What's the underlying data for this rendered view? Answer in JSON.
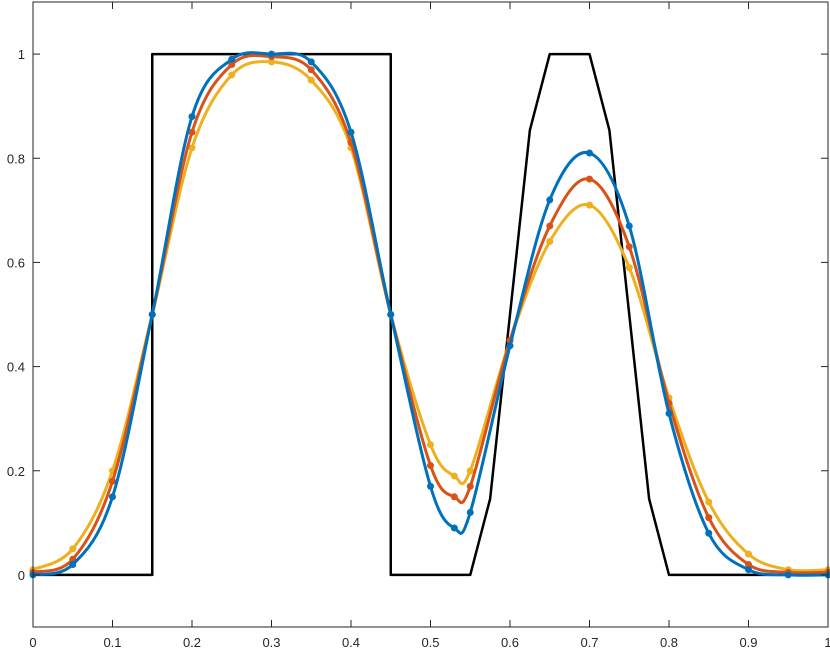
{
  "chart_data": {
    "type": "line",
    "title": "",
    "xlabel": "",
    "ylabel": "",
    "xlim": [
      0,
      1
    ],
    "ylim": [
      -0.1,
      1.1
    ],
    "xticks": [
      0,
      0.1,
      0.2,
      0.3,
      0.4,
      0.5,
      0.6,
      0.7,
      0.8,
      0.9,
      1
    ],
    "xtick_labels": [
      "0",
      "0.1",
      "0.2",
      "0.3",
      "0.4",
      "0.5",
      "0.6",
      "0.7",
      "0.8",
      "0.9",
      "1"
    ],
    "yticks": [
      0,
      0.2,
      0.4,
      0.6,
      0.8,
      1
    ],
    "ytick_labels": [
      "0",
      "0.2",
      "0.4",
      "0.6",
      "0.8",
      "1"
    ],
    "grid": false,
    "legend": "none",
    "series": [
      {
        "color": "#000000",
        "marker": "none",
        "x": [
          0,
          0.15,
          0.15,
          0.45,
          0.45,
          0.55,
          0.575,
          0.6,
          0.625,
          0.65,
          0.675,
          0.7,
          0.725,
          0.75,
          0.775,
          0.8,
          0.825,
          0.85,
          1
        ],
        "y": [
          0,
          0,
          1,
          1,
          0,
          0,
          0.146,
          0.5,
          0.854,
          1.0,
          1.0,
          1.0,
          0.854,
          0.5,
          0.146,
          0.0,
          0.0,
          0,
          0
        ]
      },
      {
        "color": "#EDB120",
        "marker": "dot",
        "x": [
          0,
          0.05,
          0.1,
          0.15,
          0.2,
          0.25,
          0.3,
          0.35,
          0.4,
          0.45,
          0.5,
          0.53,
          0.55,
          0.6,
          0.65,
          0.7,
          0.75,
          0.8,
          0.85,
          0.9,
          0.95,
          1
        ],
        "y": [
          0.01,
          0.05,
          0.2,
          0.5,
          0.82,
          0.96,
          0.985,
          0.95,
          0.82,
          0.5,
          0.25,
          0.19,
          0.2,
          0.45,
          0.64,
          0.71,
          0.59,
          0.34,
          0.14,
          0.04,
          0.01,
          0.01
        ]
      },
      {
        "color": "#D95319",
        "marker": "dot",
        "x": [
          0,
          0.05,
          0.1,
          0.15,
          0.2,
          0.25,
          0.3,
          0.35,
          0.4,
          0.45,
          0.5,
          0.53,
          0.55,
          0.6,
          0.65,
          0.7,
          0.75,
          0.8,
          0.85,
          0.9,
          0.95,
          1
        ],
        "y": [
          0.005,
          0.03,
          0.18,
          0.5,
          0.85,
          0.98,
          0.995,
          0.97,
          0.83,
          0.5,
          0.21,
          0.15,
          0.17,
          0.45,
          0.67,
          0.76,
          0.63,
          0.33,
          0.11,
          0.02,
          0.005,
          0.005
        ]
      },
      {
        "color": "#0072BD",
        "marker": "dot",
        "x": [
          0,
          0.05,
          0.1,
          0.15,
          0.2,
          0.25,
          0.3,
          0.35,
          0.4,
          0.45,
          0.5,
          0.53,
          0.55,
          0.6,
          0.65,
          0.7,
          0.75,
          0.8,
          0.85,
          0.9,
          0.95,
          1
        ],
        "y": [
          0.0,
          0.02,
          0.15,
          0.5,
          0.88,
          0.99,
          1.0,
          0.985,
          0.85,
          0.5,
          0.17,
          0.09,
          0.12,
          0.44,
          0.72,
          0.81,
          0.67,
          0.31,
          0.08,
          0.01,
          0.0,
          0.0
        ]
      }
    ]
  }
}
